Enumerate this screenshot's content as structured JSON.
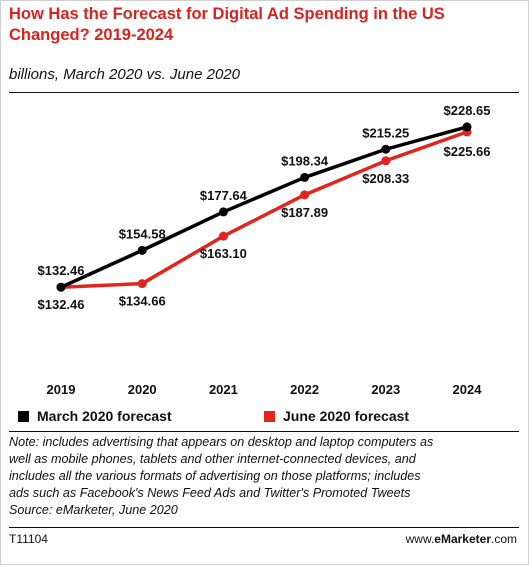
{
  "title": "How Has the Forecast for Digital Ad Spending in the US Changed? 2019-2024",
  "subtitle": "billions, March 2020 vs. June 2020",
  "note_lines": [
    "Note: includes advertising that appears on desktop and laptop computers as",
    "well as mobile phones, tablets and other internet-connected devices, and",
    "includes all the various formats of advertising on those platforms; includes",
    "ads such as Facebook's News Feed Ads and Twitter's Promoted Tweets",
    "Source: eMarketer, June 2020"
  ],
  "footer": {
    "id": "T11104",
    "site_prefix": "www.",
    "site_brand": "eMarketer",
    "site_suffix": ".com"
  },
  "colors": {
    "march": "#000000",
    "june": "#e4231c",
    "title": "#d9231f"
  },
  "chart_data": {
    "type": "line",
    "categories": [
      "2019",
      "2020",
      "2021",
      "2022",
      "2023",
      "2024"
    ],
    "series": [
      {
        "name": "March 2020 forecast",
        "values": [
          132.46,
          154.58,
          177.64,
          198.34,
          215.25,
          228.65
        ],
        "labels": [
          "$132.46",
          "$154.58",
          "$177.64",
          "$198.34",
          "$215.25",
          "$228.65"
        ]
      },
      {
        "name": "June 2020 forecast",
        "values": [
          132.46,
          134.66,
          163.1,
          187.89,
          208.33,
          225.66
        ],
        "labels": [
          "$132.46",
          "$134.66",
          "$163.10",
          "$187.89",
          "$208.33",
          "$225.66"
        ]
      }
    ],
    "ylim": [
      120,
      240
    ],
    "grid": false,
    "legend_position": "bottom"
  }
}
